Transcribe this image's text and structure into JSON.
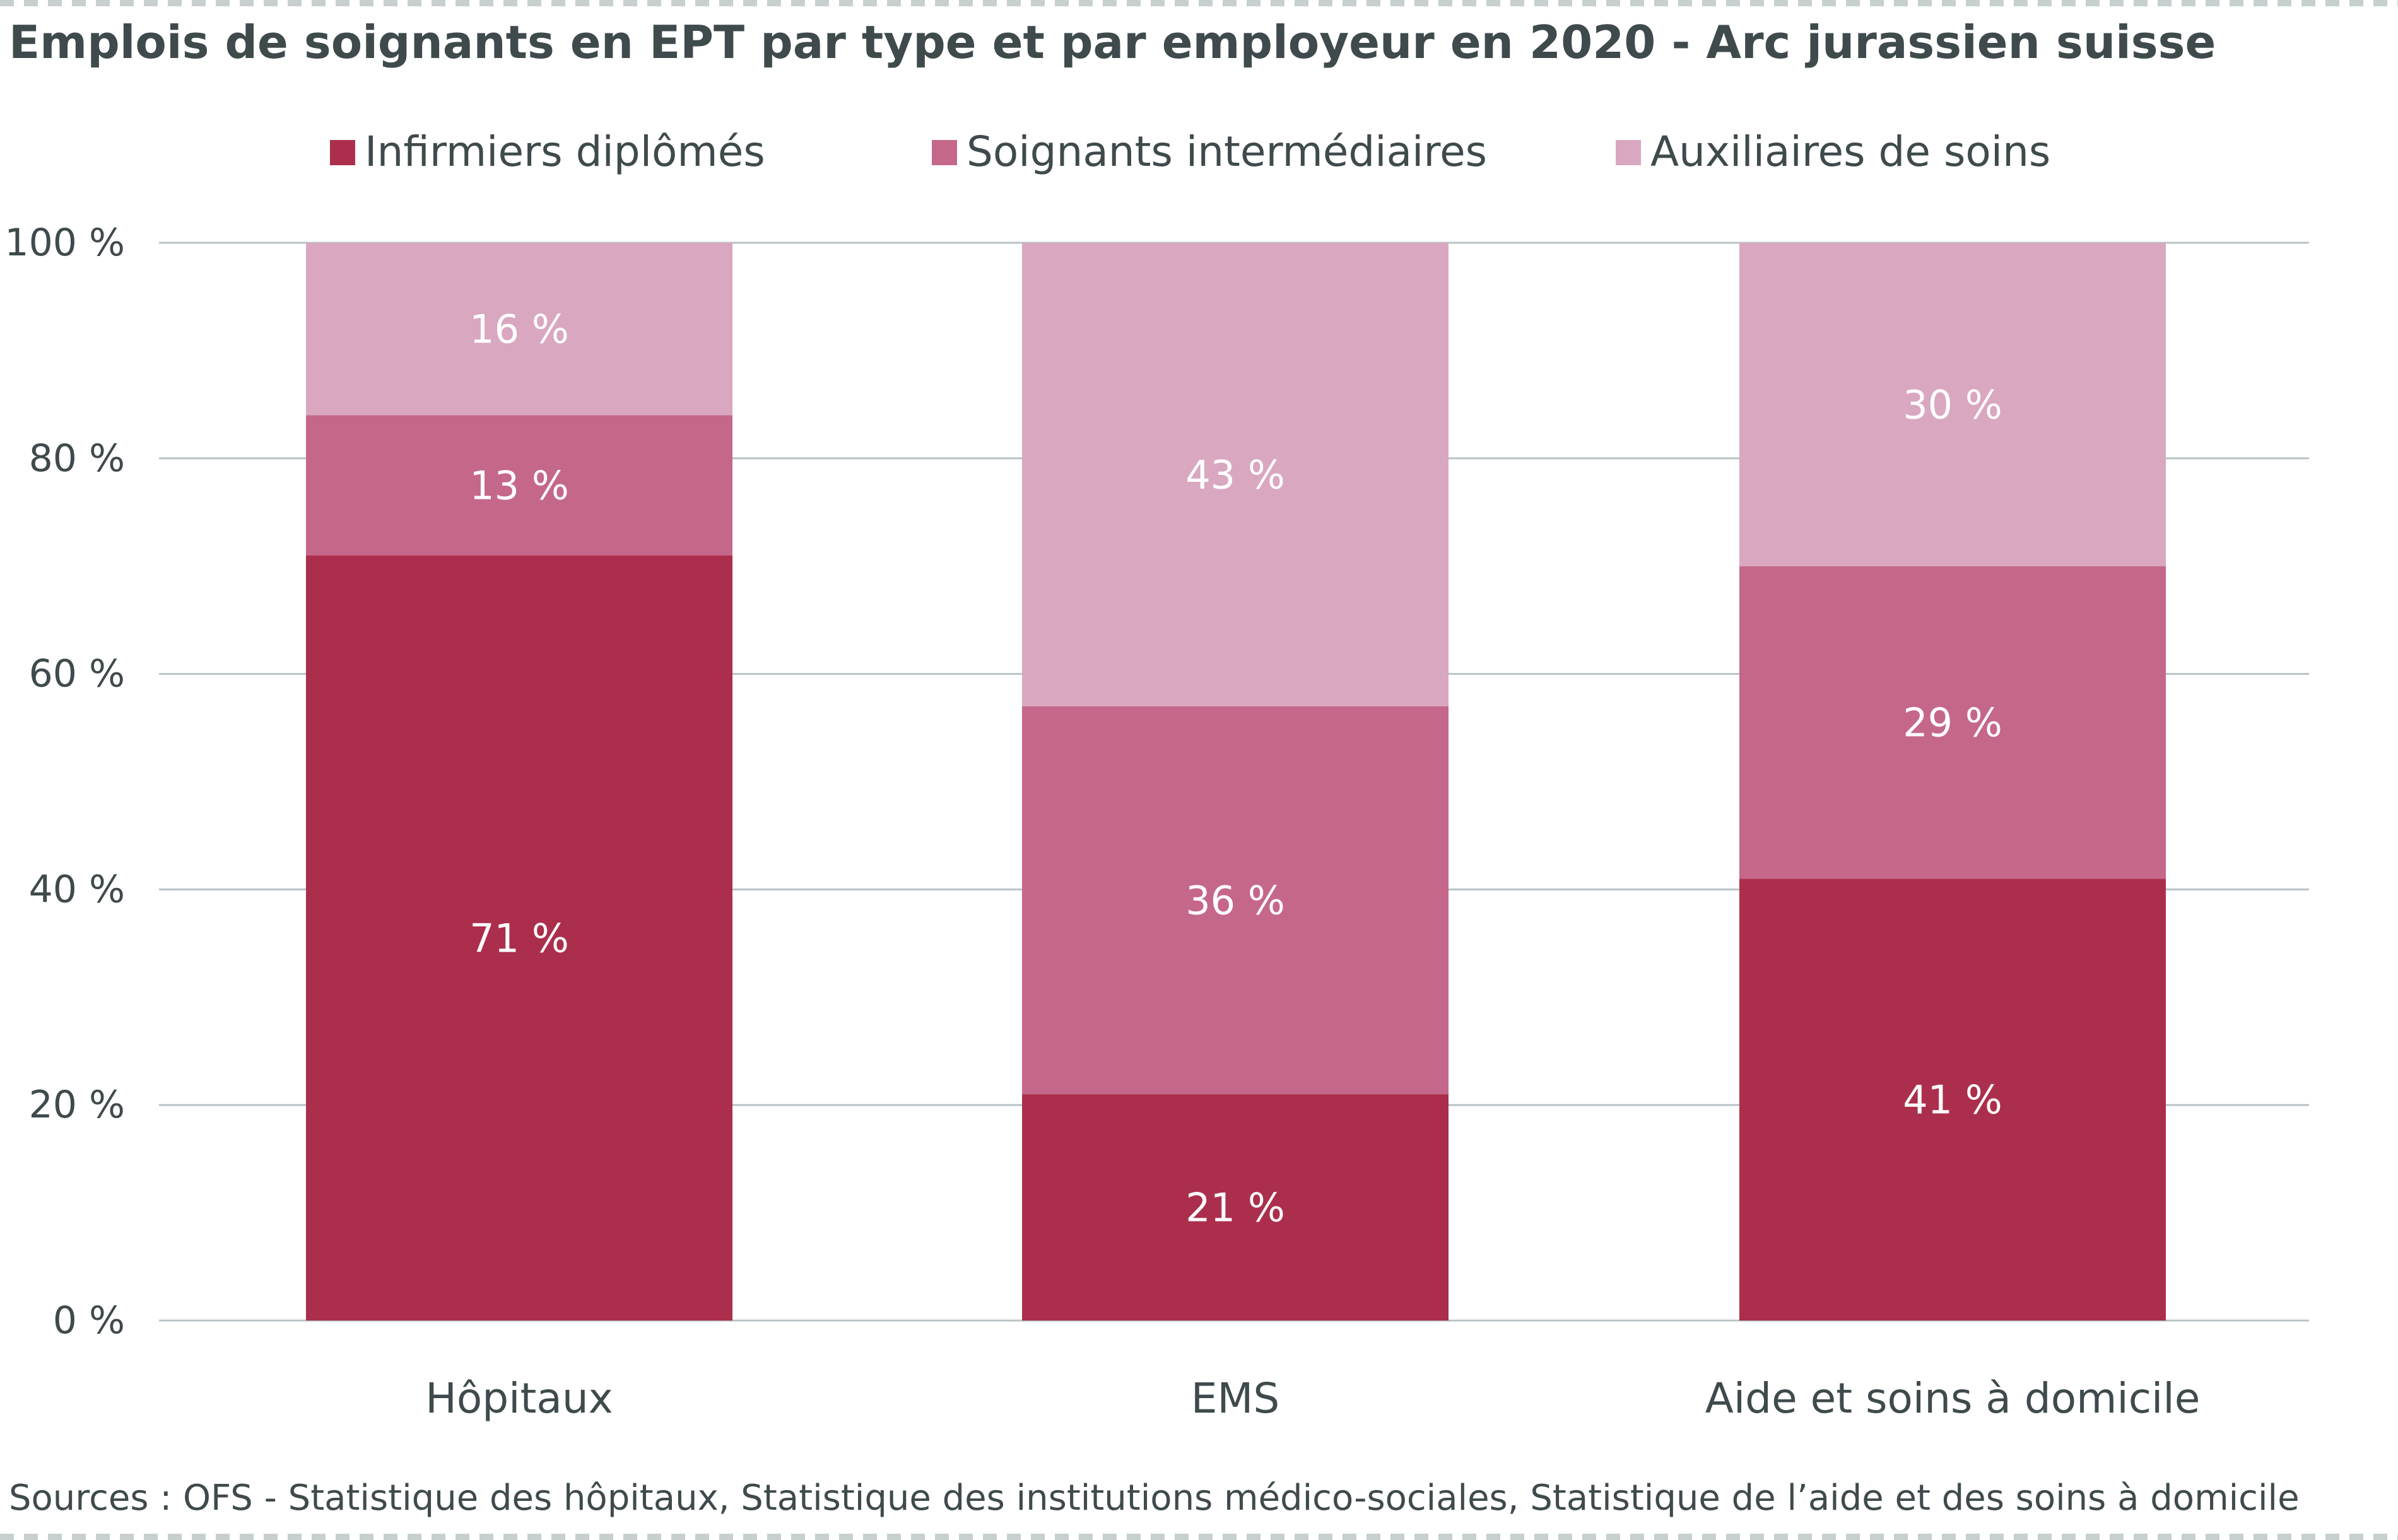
{
  "chart_data": {
    "type": "bar",
    "stacked": true,
    "title": "Emplois de soignants en EPT par type et par employeur en 2020 - Arc jurassien suisse",
    "categories": [
      "Hôpitaux",
      "EMS",
      "Aide et soins à domicile"
    ],
    "series": [
      {
        "name": "Infirmiers diplômés",
        "color": "#ab2f4c",
        "values": [
          71,
          21,
          41
        ],
        "labels": [
          "71 %",
          "21 %",
          "41 %"
        ]
      },
      {
        "name": "Soignants intermédiaires",
        "color": "#c5678a",
        "values": [
          13,
          36,
          29
        ],
        "labels": [
          "13 %",
          "36 %",
          "29 %"
        ]
      },
      {
        "name": "Auxiliaires de soins",
        "color": "#d9a7c0",
        "values": [
          16,
          43,
          30
        ],
        "labels": [
          "16 %",
          "43 %",
          "30 %"
        ]
      }
    ],
    "y_ticks": [
      "0 %",
      "20 %",
      "40 %",
      "60 %",
      "80 %",
      "100 %"
    ],
    "y_tick_values": [
      0,
      20,
      40,
      60,
      80,
      100
    ],
    "ylim": [
      0,
      100
    ],
    "legend_position": "top",
    "grid": true,
    "source": "Sources : OFS - Statistique des hôpitaux, Statistique des institutions médico-sociales, Statistique de l’aide et des soins à domicile"
  }
}
